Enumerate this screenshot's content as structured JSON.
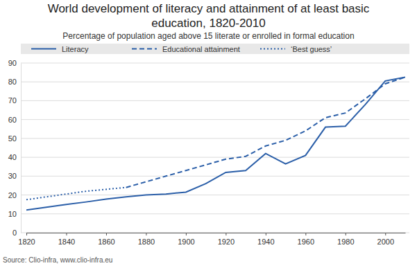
{
  "chart_data": {
    "type": "line",
    "title": "World development of literacy and attainment of at least basic education, 1820-2010",
    "subtitle": "Percentage of population aged above 15 literate or enrolled in formal education",
    "source": "Source: Clio-infra, www.clio-infra.eu",
    "x": [
      1820,
      1830,
      1840,
      1850,
      1860,
      1870,
      1880,
      1890,
      1900,
      1910,
      1920,
      1930,
      1940,
      1950,
      1960,
      1970,
      1980,
      1990,
      2000,
      2010
    ],
    "series": [
      {
        "name": "Literacy",
        "color": "#2a5ea8",
        "line_style": "solid",
        "values": [
          12,
          13.5,
          15,
          16.3,
          17.8,
          19,
          20,
          20.5,
          21.5,
          26,
          32,
          33,
          42,
          36.5,
          41,
          56,
          56.5,
          68,
          80.5,
          82.5
        ]
      },
      {
        "name": "Educational attainment",
        "color": "#2a5ea8",
        "line_style": "dashed",
        "values": [
          null,
          null,
          null,
          null,
          null,
          24,
          27,
          30,
          33,
          36,
          39,
          40.5,
          46,
          49,
          54,
          61,
          63.5,
          71,
          79,
          82.5
        ]
      },
      {
        "name": "‘Best guess’",
        "color": "#2a5ea8",
        "line_style": "dotted",
        "values": [
          17.5,
          19,
          20.5,
          22,
          23,
          24,
          null,
          null,
          null,
          null,
          null,
          null,
          null,
          null,
          null,
          null,
          null,
          null,
          null,
          null
        ]
      }
    ],
    "xlim": [
      1820,
      2010
    ],
    "xticks": [
      1820,
      1840,
      1860,
      1880,
      1900,
      1920,
      1940,
      1960,
      1980,
      2000
    ],
    "ylim": [
      0,
      90
    ],
    "yticks": [
      0,
      10,
      20,
      30,
      40,
      50,
      60,
      70,
      80,
      90
    ],
    "grid": true,
    "legend": "top"
  }
}
